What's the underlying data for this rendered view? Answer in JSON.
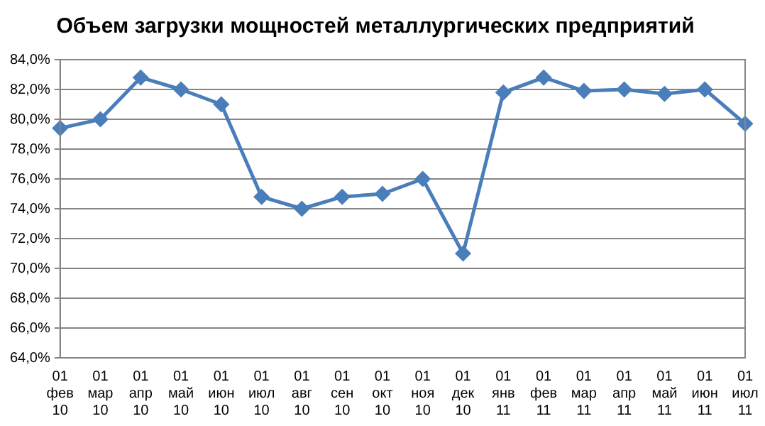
{
  "chart_data": {
    "type": "line",
    "title": "Объем загрузки мощностей металлургических предприятий",
    "categories": [
      "01 фев 10",
      "01 мар 10",
      "01 апр 10",
      "01 май 10",
      "01 июн 10",
      "01 июл 10",
      "01 авг 10",
      "01 сен 10",
      "01 окт 10",
      "01 ноя 10",
      "01 дек 10",
      "01 янв 11",
      "01 фев 11",
      "01 мар 11",
      "01 апр 11",
      "01 май 11",
      "01 июн 11",
      "01 июл 11"
    ],
    "series": [
      {
        "color": "#4a7ebb",
        "values": [
          79.4,
          80.0,
          82.8,
          82.0,
          81.0,
          74.8,
          74.0,
          74.8,
          75.0,
          76.0,
          71.0,
          81.8,
          82.8,
          81.9,
          82.0,
          81.7,
          82.0,
          79.7
        ]
      }
    ],
    "ylim": [
      64,
      84
    ],
    "yticks": [
      {
        "value": 64,
        "label": "64,0%"
      },
      {
        "value": 66,
        "label": "66,0%"
      },
      {
        "value": 68,
        "label": "68,0%"
      },
      {
        "value": 70,
        "label": "70,0%"
      },
      {
        "value": 72,
        "label": "72,0%"
      },
      {
        "value": 74,
        "label": "74,0%"
      },
      {
        "value": 76,
        "label": "76,0%"
      },
      {
        "value": 78,
        "label": "78,0%"
      },
      {
        "value": 80,
        "label": "80,0%"
      },
      {
        "value": 82,
        "label": "82,0%"
      },
      {
        "value": 84,
        "label": "84,0%"
      }
    ],
    "grid": "y",
    "marker": "diamond",
    "line_style": "solid"
  }
}
